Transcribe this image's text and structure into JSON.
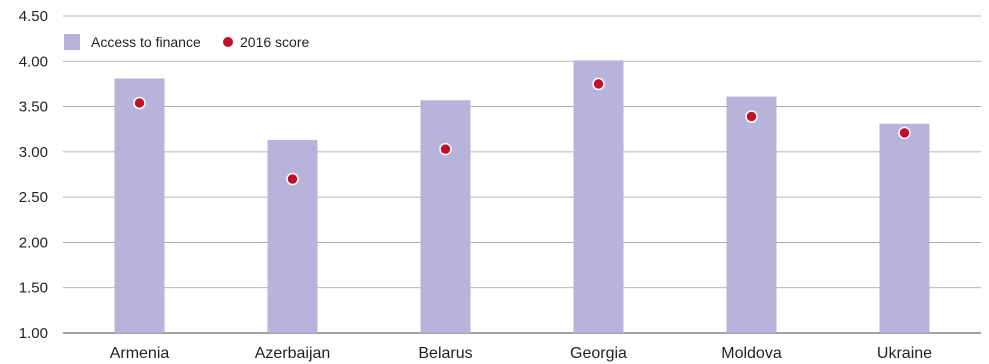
{
  "chart_data": {
    "type": "bar",
    "title": "",
    "xlabel": "",
    "ylabel": "",
    "categories": [
      "Armenia",
      "Azerbaijan",
      "Belarus",
      "Georgia",
      "Moldova",
      "Ukraine"
    ],
    "series": [
      {
        "name": "Access to finance",
        "type": "bar",
        "values": [
          3.81,
          3.13,
          3.57,
          4.01,
          3.61,
          3.31
        ],
        "color": "#b8b3da"
      },
      {
        "name": "2016 score",
        "type": "scatter",
        "values": [
          3.54,
          2.7,
          3.03,
          3.75,
          3.39,
          3.21
        ],
        "color": "#c0112b"
      }
    ],
    "ylim": [
      1.0,
      4.5
    ],
    "yticks": [
      "1.00",
      "1.50",
      "2.00",
      "2.50",
      "3.00",
      "3.50",
      "4.00",
      "4.50"
    ],
    "grid": true,
    "legend_position": "top-left"
  }
}
